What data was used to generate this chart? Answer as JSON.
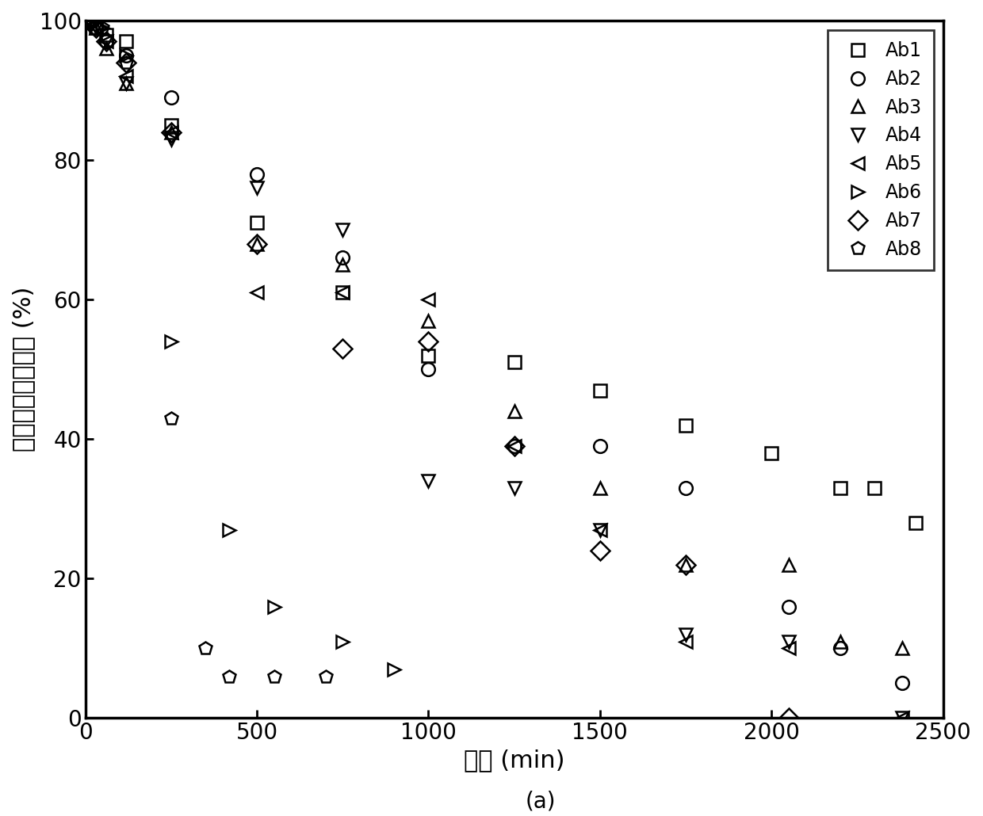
{
  "title": "(a)",
  "xlabel": "时间 (min)",
  "ylabel": "低共溶剂脱硫效率 (%)",
  "xlim": [
    0,
    2500
  ],
  "ylim": [
    0,
    100
  ],
  "xticks": [
    0,
    500,
    1000,
    1500,
    2000,
    2500
  ],
  "yticks": [
    0,
    20,
    40,
    60,
    80,
    100
  ],
  "series": {
    "Ab1": {
      "marker": "s",
      "x": [
        10,
        30,
        60,
        120,
        250,
        500,
        750,
        1000,
        1250,
        1500,
        1750,
        2000,
        2200,
        2300,
        2420
      ],
      "y": [
        100,
        99,
        98,
        97,
        85,
        71,
        61,
        52,
        51,
        47,
        42,
        38,
        33,
        33,
        28
      ]
    },
    "Ab2": {
      "marker": "o",
      "x": [
        10,
        30,
        60,
        120,
        250,
        500,
        750,
        1000,
        1250,
        1500,
        1750,
        2050,
        2200,
        2380
      ],
      "y": [
        100,
        99,
        97,
        95,
        89,
        78,
        66,
        50,
        39,
        39,
        33,
        16,
        10,
        5
      ]
    },
    "Ab3": {
      "marker": "^",
      "x": [
        10,
        30,
        60,
        120,
        250,
        500,
        750,
        1000,
        1250,
        1500,
        1750,
        2050,
        2200,
        2380
      ],
      "y": [
        100,
        99,
        96,
        91,
        84,
        68,
        65,
        57,
        44,
        33,
        22,
        22,
        11,
        10
      ]
    },
    "Ab4": {
      "marker": "v",
      "x": [
        10,
        30,
        60,
        120,
        250,
        500,
        750,
        1000,
        1250,
        1500,
        1750,
        2050,
        2380
      ],
      "y": [
        100,
        99,
        97,
        91,
        83,
        76,
        70,
        34,
        33,
        27,
        12,
        11,
        0
      ]
    },
    "Ab5": {
      "marker": "<",
      "x": [
        10,
        30,
        60,
        120,
        250,
        500,
        750,
        1000,
        1250,
        1500,
        1750,
        2050,
        2380
      ],
      "y": [
        100,
        99,
        97,
        92,
        84,
        61,
        61,
        60,
        39,
        27,
        11,
        10,
        0
      ]
    },
    "Ab6": {
      "marker": ">",
      "x": [
        10,
        50,
        120,
        250,
        420,
        550,
        750,
        900
      ],
      "y": [
        100,
        99,
        95,
        54,
        27,
        16,
        11,
        7
      ]
    },
    "Ab7": {
      "marker": "D",
      "x": [
        10,
        30,
        60,
        120,
        250,
        500,
        750,
        1000,
        1250,
        1500,
        1750,
        2050
      ],
      "y": [
        100,
        99,
        97,
        94,
        84,
        68,
        53,
        54,
        39,
        24,
        22,
        0
      ]
    },
    "Ab8": {
      "marker": "p",
      "x": [
        10,
        50,
        120,
        250,
        350,
        420,
        550,
        700
      ],
      "y": [
        100,
        99,
        94,
        43,
        10,
        6,
        6,
        6
      ]
    }
  },
  "line_color": "black",
  "marker_size": 12,
  "linewidth": 0,
  "font_size_label": 22,
  "font_size_tick": 20,
  "font_size_legend": 17,
  "font_size_title": 20,
  "markeredgewidth": 1.8
}
